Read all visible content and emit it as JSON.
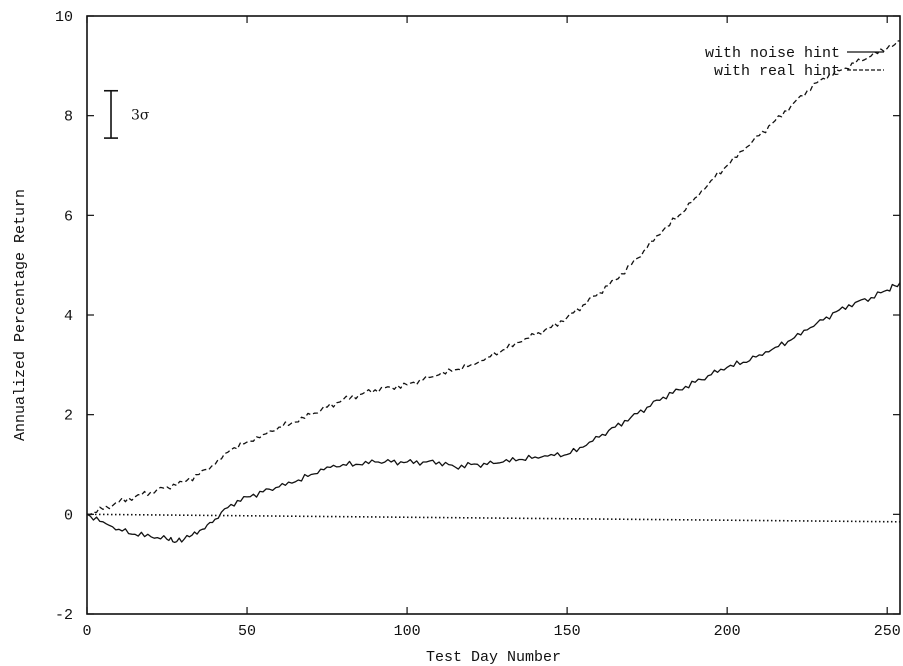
{
  "chart_data": {
    "type": "line",
    "xlabel": "Test Day Number",
    "ylabel": "Annualized Percentage Return",
    "xlim": [
      0,
      254
    ],
    "ylim": [
      -2,
      10
    ],
    "xticks": [
      0,
      50,
      100,
      150,
      200,
      250
    ],
    "yticks": [
      -2,
      0,
      2,
      4,
      6,
      8,
      10
    ],
    "xtick_labels": [
      "0",
      "50",
      "100",
      "150",
      "200",
      "250"
    ],
    "ytick_labels": [
      "-2",
      "0",
      "2",
      "4",
      "6",
      "8",
      "10"
    ],
    "grid": false,
    "legend_position": "top-right",
    "error_bar": {
      "label": "3σ",
      "x": 7.5,
      "y_low": 7.55,
      "y_high": 8.5
    },
    "series": [
      {
        "name": "with noise hint",
        "style": "solid",
        "x": [
          0,
          5,
          10,
          15,
          20,
          25,
          28,
          32,
          36,
          40,
          45,
          50,
          55,
          60,
          65,
          70,
          75,
          80,
          85,
          90,
          95,
          100,
          105,
          110,
          115,
          120,
          125,
          130,
          135,
          140,
          145,
          150,
          155,
          160,
          165,
          170,
          175,
          180,
          185,
          190,
          195,
          200,
          205,
          210,
          215,
          220,
          225,
          230,
          235,
          240,
          245,
          250,
          254
        ],
        "y": [
          0.0,
          -0.15,
          -0.3,
          -0.4,
          -0.45,
          -0.5,
          -0.55,
          -0.45,
          -0.3,
          -0.1,
          0.2,
          0.35,
          0.45,
          0.55,
          0.65,
          0.8,
          0.95,
          1.0,
          1.0,
          1.05,
          1.05,
          1.05,
          1.05,
          1.05,
          0.95,
          1.0,
          1.0,
          1.05,
          1.1,
          1.15,
          1.2,
          1.2,
          1.35,
          1.55,
          1.75,
          1.95,
          2.15,
          2.35,
          2.5,
          2.65,
          2.8,
          2.95,
          3.05,
          3.2,
          3.35,
          3.5,
          3.7,
          3.9,
          4.1,
          4.25,
          4.35,
          4.5,
          4.65
        ]
      },
      {
        "name": "with real hint",
        "style": "dashed",
        "x": [
          0,
          5,
          10,
          15,
          20,
          25,
          30,
          35,
          40,
          45,
          50,
          55,
          60,
          65,
          70,
          75,
          80,
          85,
          90,
          95,
          100,
          105,
          110,
          115,
          120,
          125,
          130,
          135,
          140,
          145,
          150,
          155,
          160,
          165,
          170,
          175,
          180,
          185,
          190,
          195,
          200,
          205,
          210,
          215,
          220,
          225,
          230,
          235,
          240,
          245,
          250,
          254
        ],
        "y": [
          0.0,
          0.1,
          0.25,
          0.35,
          0.45,
          0.55,
          0.65,
          0.8,
          1.0,
          1.3,
          1.45,
          1.6,
          1.75,
          1.85,
          2.0,
          2.15,
          2.3,
          2.4,
          2.5,
          2.55,
          2.6,
          2.7,
          2.8,
          2.9,
          3.0,
          3.15,
          3.3,
          3.45,
          3.6,
          3.75,
          3.95,
          4.2,
          4.45,
          4.7,
          5.0,
          5.35,
          5.7,
          6.0,
          6.35,
          6.7,
          7.0,
          7.3,
          7.6,
          7.9,
          8.2,
          8.5,
          8.75,
          8.9,
          9.05,
          9.2,
          9.35,
          9.5
        ]
      },
      {
        "name": "",
        "style": "dotted",
        "x": [
          0,
          254
        ],
        "y": [
          0,
          -0.15
        ]
      }
    ]
  }
}
